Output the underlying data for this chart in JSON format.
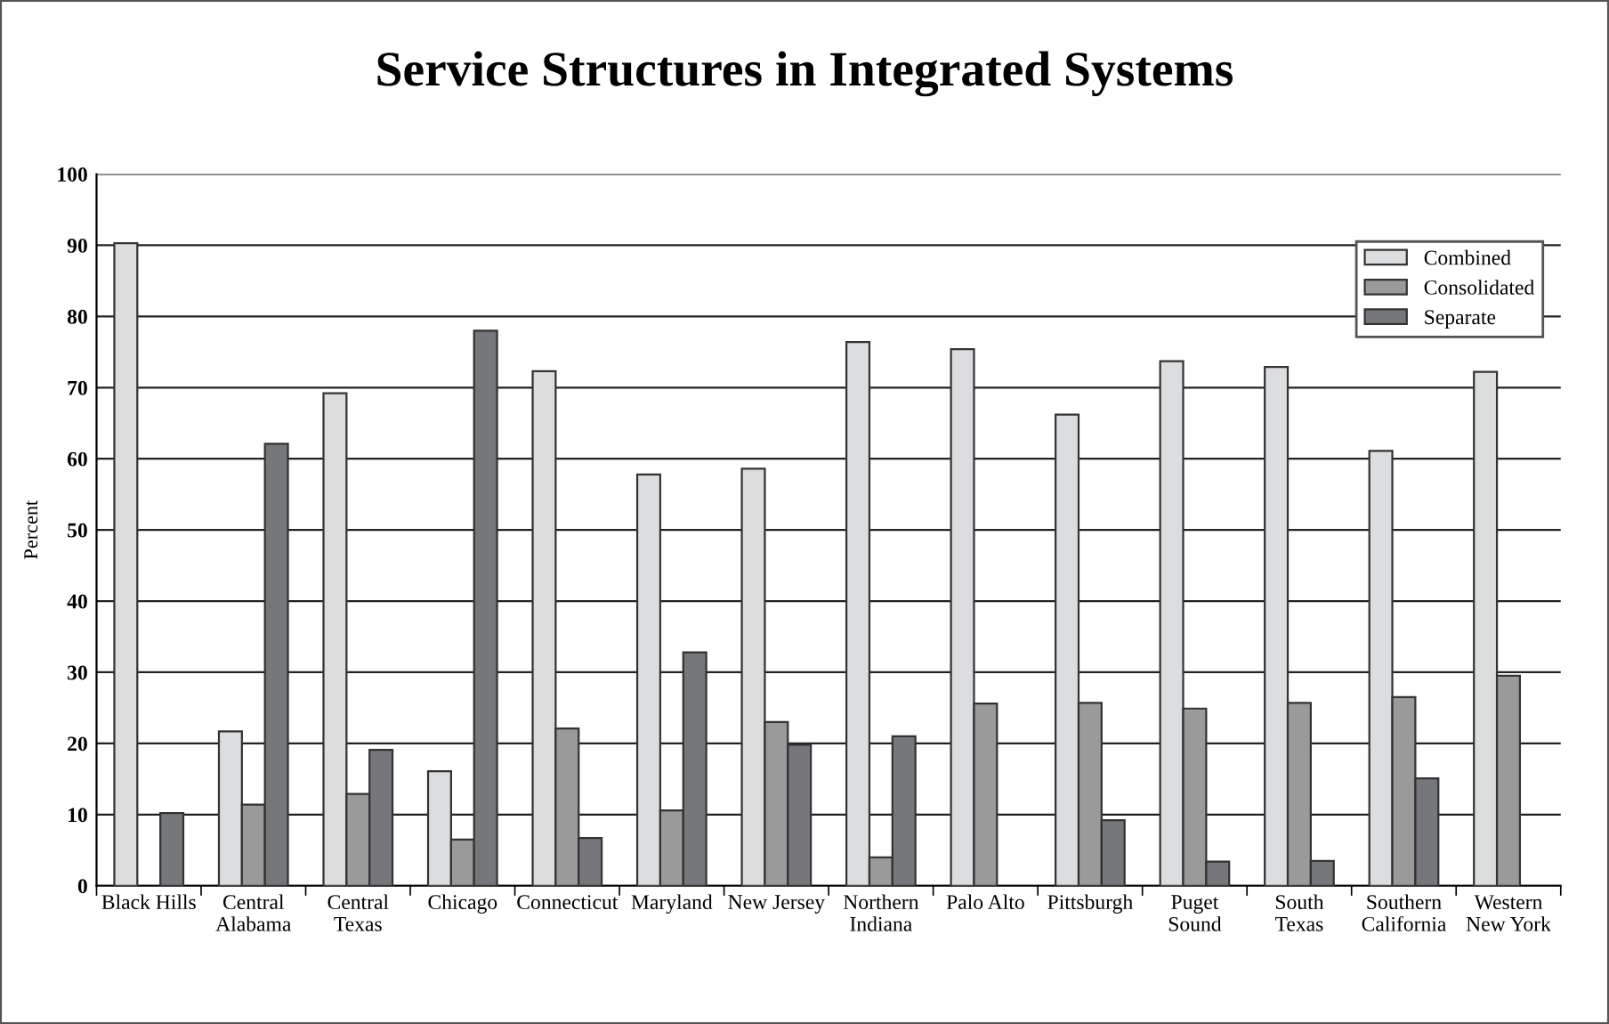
{
  "chart_data": {
    "type": "bar",
    "title": "Service Structures in Integrated Systems",
    "ylabel": "Percent",
    "categories": [
      "Black Hills",
      "Central\nAlabama",
      "Central\nTexas",
      "Chicago",
      "Connecticut",
      "Maryland",
      "New Jersey",
      "Northern\nIndiana",
      "Palo Alto",
      "Pittsburgh",
      "Puget\nSound",
      "South\nTexas",
      "Southern\nCalifornia",
      "Western\nNew York"
    ],
    "series": [
      {
        "name": "Combined",
        "color": "#dcdddf",
        "values": [
          90.3,
          21.7,
          69.2,
          16.1,
          72.3,
          57.8,
          58.6,
          76.4,
          75.4,
          66.2,
          73.7,
          72.9,
          61.1,
          72.2
        ]
      },
      {
        "name": "Consolidated",
        "color": "#9a9a9a",
        "values": [
          null,
          11.4,
          12.9,
          6.5,
          22.1,
          10.6,
          23.0,
          4.0,
          25.6,
          25.7,
          24.9,
          25.7,
          26.5,
          29.5
        ]
      },
      {
        "name": "Separate",
        "color": "#76777a",
        "values": [
          10.2,
          62.1,
          19.1,
          78.0,
          6.7,
          32.8,
          19.8,
          21.0,
          null,
          9.2,
          3.4,
          3.5,
          15.1,
          null
        ]
      }
    ],
    "ylim": [
      0,
      100
    ],
    "yticks": [
      0,
      10,
      20,
      30,
      40,
      50,
      60,
      70,
      80,
      90,
      100
    ],
    "grid": "y",
    "legend": "top right"
  }
}
